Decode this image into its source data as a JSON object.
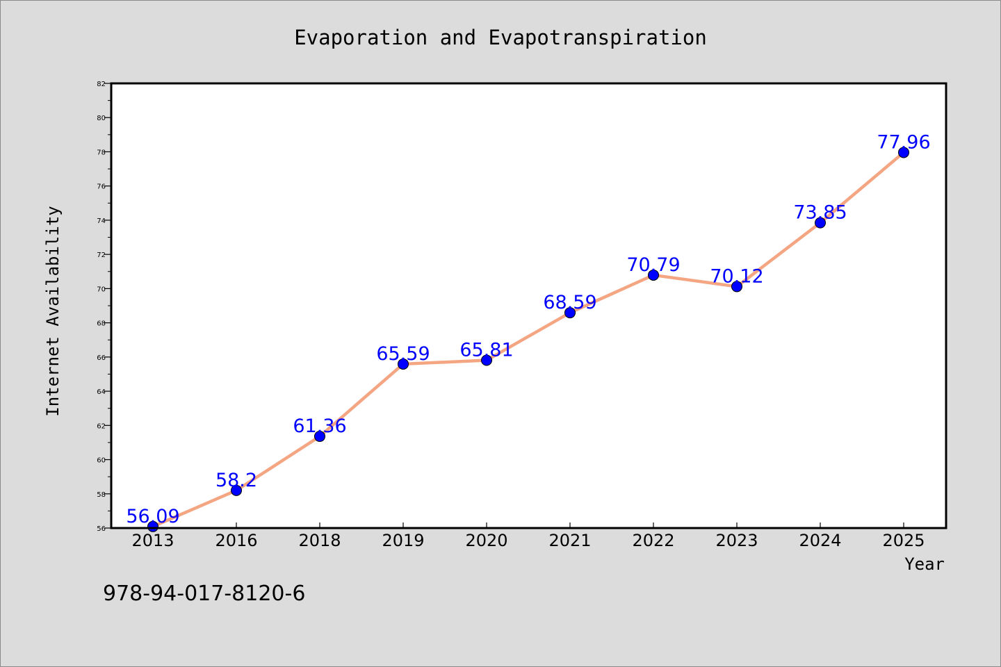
{
  "caption": "978-94-017-8120-6",
  "colors": {
    "background": "#dcdcdc",
    "plot_background": "#ffffff",
    "line": "#f4a582",
    "marker": "#0000ff",
    "data_label": "#0000ff",
    "text": "#000000"
  },
  "chart_data": {
    "type": "line",
    "title": "Evaporation and Evapotranspiration",
    "xlabel": "Year",
    "ylabel": "Internet Availability",
    "categories": [
      "2013",
      "2016",
      "2018",
      "2019",
      "2020",
      "2021",
      "2022",
      "2023",
      "2024",
      "2025"
    ],
    "series": [
      {
        "values": [
          56.09,
          58.2,
          61.36,
          65.59,
          65.81,
          68.59,
          70.79,
          70.12,
          73.85,
          77.96
        ],
        "labels": [
          "56.09",
          "58.2",
          "61.36",
          "65.59",
          "65.81",
          "68.59",
          "70.79",
          "70.12",
          "73.85",
          "77.96"
        ]
      }
    ],
    "ylim": [
      56,
      82
    ],
    "yticks": [
      "56",
      "58",
      "60",
      "62",
      "64",
      "66",
      "68",
      "70",
      "72",
      "74",
      "76",
      "78",
      "80",
      "82"
    ],
    "grid": false,
    "legend": "none"
  }
}
